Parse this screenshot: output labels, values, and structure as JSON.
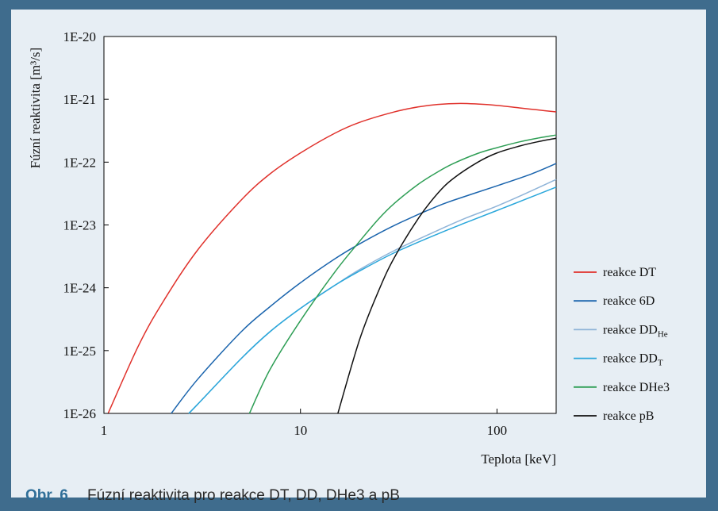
{
  "figure": {
    "caption_label": "Obr. 6",
    "caption_text": "Fúzní reaktivita pro reakce DT, DD, DHe3 a pB"
  },
  "chart_data": {
    "type": "line",
    "xlabel": "Teplota [keV]",
    "ylabel": "Fúzní reaktivita [m³/s]",
    "xscale": "log",
    "yscale": "log",
    "xlim": [
      1,
      200
    ],
    "ylim": [
      1e-26,
      1e-20
    ],
    "x_ticks": [
      "1",
      "10",
      "100"
    ],
    "y_ticks": [
      "1E-26",
      "1E-25",
      "1E-24",
      "1E-23",
      "1E-22",
      "1E-21",
      "1E-20"
    ],
    "grid": false,
    "legend_position": "right",
    "series": [
      {
        "name": "reakce DT",
        "legend_main": "reakce DT",
        "legend_sub": "",
        "color": "#e0312b",
        "x": [
          1.05,
          1.5,
          2,
          3,
          5,
          7,
          10,
          15,
          20,
          30,
          40,
          50,
          65,
          80,
          100,
          130,
          160,
          200
        ],
        "y": [
          1e-26,
          1.2e-25,
          6e-25,
          4e-24,
          2.5e-23,
          6.5e-23,
          1.4e-22,
          2.9e-22,
          4.3e-22,
          6.3e-22,
          7.6e-22,
          8.3e-22,
          8.6e-22,
          8.4e-22,
          8e-22,
          7.3e-22,
          6.8e-22,
          6.3e-22
        ]
      },
      {
        "name": "reakce 6D",
        "legend_main": "reakce 6D",
        "legend_sub": "",
        "color": "#1a64ad",
        "x": [
          2.2,
          3,
          5,
          7,
          10,
          15,
          20,
          30,
          50,
          70,
          100,
          150,
          200
        ],
        "y": [
          1e-26,
          3.5e-26,
          2e-25,
          5e-25,
          1.2e-24,
          2.9e-24,
          5e-24,
          9.8e-24,
          2e-23,
          2.9e-23,
          4.2e-23,
          6.5e-23,
          9.5e-23
        ]
      },
      {
        "name": "reakce DD_He",
        "legend_main": "reakce DD",
        "legend_sub": "He",
        "color": "#8fb4d8",
        "x": [
          2.7,
          3,
          5,
          7,
          10,
          15,
          20,
          30,
          50,
          70,
          100,
          150,
          200
        ],
        "y": [
          1e-26,
          1.4e-26,
          7.5e-26,
          2e-25,
          4.7e-25,
          1.1e-24,
          1.95e-24,
          3.9e-24,
          8.2e-24,
          1.3e-23,
          2e-23,
          3.5e-23,
          5.3e-23
        ]
      },
      {
        "name": "reakce DD_T",
        "legend_main": "reakce DD",
        "legend_sub": "T",
        "color": "#2aa7db",
        "x": [
          2.7,
          3,
          5,
          7,
          10,
          15,
          20,
          30,
          50,
          70,
          100,
          150,
          200
        ],
        "y": [
          1e-26,
          1.4e-26,
          7.5e-26,
          2e-25,
          4.7e-25,
          1.1e-24,
          1.85e-24,
          3.6e-24,
          7.2e-24,
          1.1e-23,
          1.7e-23,
          2.8e-23,
          4e-23
        ]
      },
      {
        "name": "reakce DHe3",
        "legend_main": "reakce DHe3",
        "legend_sub": "",
        "color": "#2e9e55",
        "x": [
          5.5,
          7,
          10,
          15,
          20,
          25,
          30,
          40,
          50,
          60,
          80,
          100,
          130,
          160,
          200
        ],
        "y": [
          1e-26,
          5e-26,
          3e-25,
          1.8e-24,
          5.5e-24,
          1.25e-23,
          2.2e-23,
          4.5e-23,
          7e-23,
          9.5e-23,
          1.38e-22,
          1.7e-22,
          2.1e-22,
          2.4e-22,
          2.7e-22
        ]
      },
      {
        "name": "reakce pB",
        "legend_main": "reakce pB",
        "legend_sub": "",
        "color": "#111111",
        "x": [
          15.5,
          20,
          25,
          30,
          40,
          50,
          60,
          80,
          100,
          130,
          160,
          200
        ],
        "y": [
          1e-26,
          1.5e-25,
          9e-25,
          3e-24,
          1.3e-23,
          3.2e-23,
          5.5e-23,
          1e-22,
          1.4e-22,
          1.8e-22,
          2.1e-22,
          2.4e-22
        ]
      }
    ]
  }
}
